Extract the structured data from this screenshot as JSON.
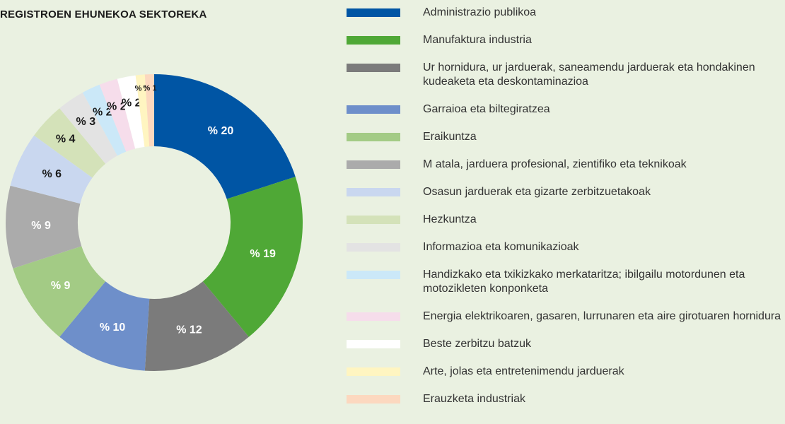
{
  "chart_data": {
    "type": "donut",
    "title": "REGISTROEN EHUNEKOA SEKTOREKA",
    "categories": [
      "Administrazio publikoa",
      "Manufaktura industria",
      "Ur hornidura, ur jarduerak, saneamendu jarduerak eta hondakinen kudeaketa eta deskontaminazioa",
      "Garraioa eta biltegiratzea",
      "Eraikuntza",
      "M atala, jarduera profesional, zientifiko eta teknikoak",
      "Osasun jarduerak eta gizarte zerbitzuetakoak",
      "Hezkuntza",
      "Informazioa eta komunikazioak",
      "Handizkako eta txikizkako merkataritza; ibilgailu motordunen eta motozikleten konponketa",
      "Energia elektrikoaren, gasaren, lurrunaren eta aire girotuaren hornidura",
      "Beste zerbitzu batzuk",
      "Arte, jolas eta entretenimendu jarduerak",
      "Erauzketa industriak"
    ],
    "values": [
      20,
      19,
      12,
      10,
      9,
      9,
      6,
      4,
      3,
      2,
      2,
      2,
      1,
      1
    ],
    "value_labels": [
      "% 20",
      "% 19",
      "% 12",
      "% 10",
      "% 9",
      "% 9",
      "% 6",
      "% 4",
      "% 3",
      "% 2",
      "% 2",
      "% 2",
      "% 1",
      "% 1"
    ],
    "colors": [
      "#0055a4",
      "#4fa836",
      "#7b7b7b",
      "#6e8fca",
      "#a3cb85",
      "#ababab",
      "#c9d7ef",
      "#d4e2b9",
      "#e3e3e3",
      "#cbe8f8",
      "#f6ddeb",
      "#ffffff",
      "#fff5c1",
      "#fcd8bf"
    ],
    "label_colors": [
      "#ffffff",
      "#ffffff",
      "#ffffff",
      "#ffffff",
      "#ffffff",
      "#ffffff",
      "#1a1a1a",
      "#1a1a1a",
      "#1a1a1a",
      "#1a1a1a",
      "#1a1a1a",
      "#1a1a1a",
      "#1a1a1a",
      "#1a1a1a"
    ]
  }
}
